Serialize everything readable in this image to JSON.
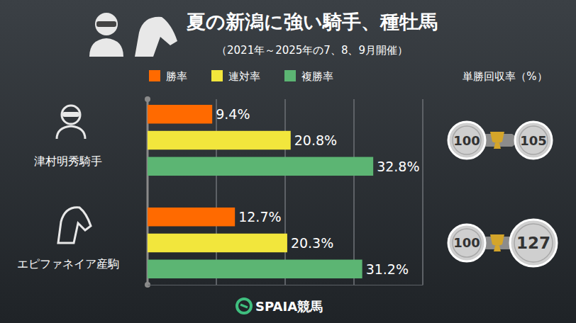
{
  "chart_data": {
    "type": "bar",
    "orientation": "horizontal",
    "title": "夏の新潟に強い騎手、種牡馬",
    "subtitle": "（2021年～2025年の7、8、9月開催）",
    "categories": [
      "津村明秀騎手",
      "エピファネイア産駒"
    ],
    "series": [
      {
        "name": "勝率",
        "color": "#ff6a00",
        "values": [
          9.4,
          12.7
        ],
        "value_labels": [
          "9.4%",
          "12.7%"
        ]
      },
      {
        "name": "連対率",
        "color": "#f2e63c",
        "values": [
          20.8,
          20.3
        ],
        "value_labels": [
          "20.8%",
          "20.3%"
        ]
      },
      {
        "name": "複勝率",
        "color": "#5cb573",
        "values": [
          32.8,
          31.2
        ],
        "value_labels": [
          "32.8%",
          "31.2%"
        ]
      }
    ],
    "xlim": [
      0,
      40
    ],
    "xticks": [
      0,
      10,
      20,
      30,
      40
    ],
    "tick_labels": false,
    "grid": true,
    "legend": "top",
    "data_labels": true,
    "recovery_title": "単勝回収率（%）",
    "recovery_base": [
      100,
      100
    ],
    "recovery_values": [
      105,
      127
    ],
    "credit": "SPAIA競馬"
  }
}
